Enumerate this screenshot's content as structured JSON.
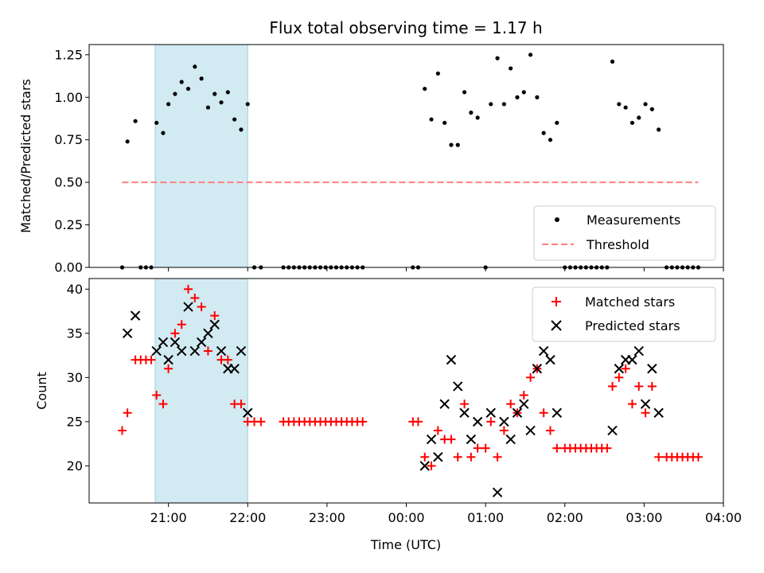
{
  "chart_data": [
    {
      "type": "scatter",
      "title": "Flux total observing time = 1.17 h",
      "xlabel": "",
      "ylabel": "Matched/Predicted stars",
      "ylim": [
        0,
        1.31
      ],
      "yticks": [
        0.0,
        0.25,
        0.5,
        0.75,
        1.0,
        1.25
      ],
      "ytick_labels": [
        "0.00",
        "0.25",
        "0.50",
        "0.75",
        "1.00",
        "1.25"
      ],
      "xlim_hours": [
        20.0,
        28.0
      ],
      "highlight_span": {
        "start": "20:50",
        "end": "22:00",
        "color": "#add8e6"
      },
      "legend_position": "lower-right",
      "series": [
        {
          "name": "Measurements",
          "marker": "dot",
          "color": "#000000",
          "points": [
            [
              "20:25",
              0.0
            ],
            [
              "20:29",
              0.74
            ],
            [
              "20:35",
              0.86
            ],
            [
              "20:39",
              0.0
            ],
            [
              "20:43",
              0.0
            ],
            [
              "20:47",
              0.0
            ],
            [
              "20:51",
              0.85
            ],
            [
              "20:56",
              0.79
            ],
            [
              "21:00",
              0.96
            ],
            [
              "21:05",
              1.02
            ],
            [
              "21:10",
              1.09
            ],
            [
              "21:15",
              1.05
            ],
            [
              "21:20",
              1.18
            ],
            [
              "21:25",
              1.11
            ],
            [
              "21:30",
              0.94
            ],
            [
              "21:35",
              1.02
            ],
            [
              "21:40",
              0.97
            ],
            [
              "21:45",
              1.03
            ],
            [
              "21:50",
              0.87
            ],
            [
              "21:55",
              0.81
            ],
            [
              "22:00",
              0.96
            ],
            [
              "22:05",
              0.0
            ],
            [
              "22:10",
              0.0
            ],
            [
              "22:27",
              0.0
            ],
            [
              "22:31",
              0.0
            ],
            [
              "22:35",
              0.0
            ],
            [
              "22:39",
              0.0
            ],
            [
              "22:43",
              0.0
            ],
            [
              "22:47",
              0.0
            ],
            [
              "22:51",
              0.0
            ],
            [
              "22:55",
              0.0
            ],
            [
              "22:59",
              0.0
            ],
            [
              "23:03",
              0.0
            ],
            [
              "23:07",
              0.0
            ],
            [
              "23:11",
              0.0
            ],
            [
              "23:15",
              0.0
            ],
            [
              "23:19",
              0.0
            ],
            [
              "23:23",
              0.0
            ],
            [
              "23:27",
              0.0
            ],
            [
              "00:05",
              0.0
            ],
            [
              "00:09",
              0.0
            ],
            [
              "00:14",
              1.05
            ],
            [
              "00:19",
              0.87
            ],
            [
              "00:24",
              1.14
            ],
            [
              "00:29",
              0.85
            ],
            [
              "00:34",
              0.72
            ],
            [
              "00:39",
              0.72
            ],
            [
              "00:44",
              1.03
            ],
            [
              "00:49",
              0.91
            ],
            [
              "00:54",
              0.88
            ],
            [
              "01:00",
              0.0
            ],
            [
              "01:04",
              0.96
            ],
            [
              "01:09",
              1.23
            ],
            [
              "01:14",
              0.96
            ],
            [
              "01:19",
              1.17
            ],
            [
              "01:24",
              1.0
            ],
            [
              "01:29",
              1.03
            ],
            [
              "01:34",
              1.25
            ],
            [
              "01:39",
              1.0
            ],
            [
              "01:44",
              0.79
            ],
            [
              "01:49",
              0.75
            ],
            [
              "01:54",
              0.85
            ],
            [
              "02:00",
              0.0
            ],
            [
              "02:04",
              0.0
            ],
            [
              "02:08",
              0.0
            ],
            [
              "02:12",
              0.0
            ],
            [
              "02:16",
              0.0
            ],
            [
              "02:20",
              0.0
            ],
            [
              "02:24",
              0.0
            ],
            [
              "02:28",
              0.0
            ],
            [
              "02:32",
              0.0
            ],
            [
              "02:36",
              1.21
            ],
            [
              "02:41",
              0.96
            ],
            [
              "02:46",
              0.94
            ],
            [
              "02:51",
              0.85
            ],
            [
              "02:56",
              0.88
            ],
            [
              "03:01",
              0.96
            ],
            [
              "03:06",
              0.93
            ],
            [
              "03:11",
              0.81
            ],
            [
              "03:17",
              0.0
            ],
            [
              "03:21",
              0.0
            ],
            [
              "03:25",
              0.0
            ],
            [
              "03:29",
              0.0
            ],
            [
              "03:33",
              0.0
            ],
            [
              "03:37",
              0.0
            ],
            [
              "03:41",
              0.0
            ]
          ]
        },
        {
          "name": "Threshold",
          "type": "line",
          "style": "dashed",
          "color": "#ff8080",
          "points": [
            [
              "20:25",
              0.5
            ],
            [
              "03:41",
              0.5
            ]
          ]
        }
      ]
    },
    {
      "type": "scatter",
      "title": "",
      "xlabel": "Time (UTC)",
      "ylabel": "Count",
      "ylim": [
        15.8,
        41.2
      ],
      "yticks": [
        20,
        25,
        30,
        35,
        40
      ],
      "ytick_labels": [
        "20",
        "25",
        "30",
        "35",
        "40"
      ],
      "xlim_hours": [
        20.0,
        28.0
      ],
      "xticks": [
        "21:00",
        "22:00",
        "23:00",
        "00:00",
        "01:00",
        "02:00",
        "03:00",
        "04:00"
      ],
      "highlight_span": {
        "start": "20:50",
        "end": "22:00",
        "color": "#add8e6"
      },
      "legend_position": "upper-right",
      "series": [
        {
          "name": "Matched stars",
          "marker": "plus",
          "color": "#ff0000",
          "points": [
            [
              "20:25",
              24
            ],
            [
              "20:29",
              26
            ],
            [
              "20:35",
              32
            ],
            [
              "20:39",
              32
            ],
            [
              "20:43",
              32
            ],
            [
              "20:47",
              32
            ],
            [
              "20:51",
              28
            ],
            [
              "20:56",
              27
            ],
            [
              "21:00",
              31
            ],
            [
              "21:05",
              35
            ],
            [
              "21:10",
              36
            ],
            [
              "21:15",
              40
            ],
            [
              "21:20",
              39
            ],
            [
              "21:25",
              38
            ],
            [
              "21:30",
              33
            ],
            [
              "21:35",
              37
            ],
            [
              "21:40",
              32
            ],
            [
              "21:45",
              32
            ],
            [
              "21:50",
              27
            ],
            [
              "21:55",
              27
            ],
            [
              "22:00",
              25
            ],
            [
              "22:05",
              25
            ],
            [
              "22:10",
              25
            ],
            [
              "22:27",
              25
            ],
            [
              "22:31",
              25
            ],
            [
              "22:35",
              25
            ],
            [
              "22:39",
              25
            ],
            [
              "22:43",
              25
            ],
            [
              "22:47",
              25
            ],
            [
              "22:51",
              25
            ],
            [
              "22:55",
              25
            ],
            [
              "22:59",
              25
            ],
            [
              "23:03",
              25
            ],
            [
              "23:07",
              25
            ],
            [
              "23:11",
              25
            ],
            [
              "23:15",
              25
            ],
            [
              "23:19",
              25
            ],
            [
              "23:23",
              25
            ],
            [
              "23:27",
              25
            ],
            [
              "00:05",
              25
            ],
            [
              "00:09",
              25
            ],
            [
              "00:14",
              21
            ],
            [
              "00:19",
              20
            ],
            [
              "00:24",
              24
            ],
            [
              "00:29",
              23
            ],
            [
              "00:34",
              23
            ],
            [
              "00:39",
              21
            ],
            [
              "00:44",
              27
            ],
            [
              "00:49",
              21
            ],
            [
              "00:54",
              22
            ],
            [
              "01:00",
              22
            ],
            [
              "01:04",
              25
            ],
            [
              "01:09",
              21
            ],
            [
              "01:14",
              24
            ],
            [
              "01:19",
              27
            ],
            [
              "01:24",
              26
            ],
            [
              "01:29",
              28
            ],
            [
              "01:34",
              30
            ],
            [
              "01:39",
              31
            ],
            [
              "01:44",
              26
            ],
            [
              "01:49",
              24
            ],
            [
              "01:54",
              22
            ],
            [
              "02:00",
              22
            ],
            [
              "02:04",
              22
            ],
            [
              "02:08",
              22
            ],
            [
              "02:12",
              22
            ],
            [
              "02:16",
              22
            ],
            [
              "02:20",
              22
            ],
            [
              "02:24",
              22
            ],
            [
              "02:28",
              22
            ],
            [
              "02:32",
              22
            ],
            [
              "02:36",
              29
            ],
            [
              "02:41",
              30
            ],
            [
              "02:46",
              31
            ],
            [
              "02:51",
              27
            ],
            [
              "02:56",
              29
            ],
            [
              "03:01",
              26
            ],
            [
              "03:06",
              29
            ],
            [
              "03:11",
              21
            ],
            [
              "03:17",
              21
            ],
            [
              "03:21",
              21
            ],
            [
              "03:25",
              21
            ],
            [
              "03:29",
              21
            ],
            [
              "03:33",
              21
            ],
            [
              "03:37",
              21
            ],
            [
              "03:41",
              21
            ]
          ]
        },
        {
          "name": "Predicted stars",
          "marker": "x",
          "color": "#000000",
          "points": [
            [
              "20:29",
              35
            ],
            [
              "20:35",
              37
            ],
            [
              "20:51",
              33
            ],
            [
              "20:56",
              34
            ],
            [
              "21:00",
              32
            ],
            [
              "21:05",
              34
            ],
            [
              "21:10",
              33
            ],
            [
              "21:15",
              38
            ],
            [
              "21:20",
              33
            ],
            [
              "21:25",
              34
            ],
            [
              "21:30",
              35
            ],
            [
              "21:35",
              36
            ],
            [
              "21:40",
              33
            ],
            [
              "21:45",
              31
            ],
            [
              "21:50",
              31
            ],
            [
              "21:55",
              33
            ],
            [
              "22:00",
              26
            ],
            [
              "00:14",
              20
            ],
            [
              "00:19",
              23
            ],
            [
              "00:24",
              21
            ],
            [
              "00:29",
              27
            ],
            [
              "00:34",
              32
            ],
            [
              "00:39",
              29
            ],
            [
              "00:44",
              26
            ],
            [
              "00:49",
              23
            ],
            [
              "00:54",
              25
            ],
            [
              "01:04",
              26
            ],
            [
              "01:09",
              17
            ],
            [
              "01:14",
              25
            ],
            [
              "01:19",
              23
            ],
            [
              "01:24",
              26
            ],
            [
              "01:29",
              27
            ],
            [
              "01:34",
              24
            ],
            [
              "01:39",
              31
            ],
            [
              "01:44",
              33
            ],
            [
              "01:49",
              32
            ],
            [
              "01:54",
              26
            ],
            [
              "02:36",
              24
            ],
            [
              "02:41",
              31
            ],
            [
              "02:46",
              32
            ],
            [
              "02:51",
              32
            ],
            [
              "02:56",
              33
            ],
            [
              "03:01",
              27
            ],
            [
              "03:06",
              31
            ],
            [
              "03:11",
              26
            ]
          ]
        }
      ]
    }
  ]
}
